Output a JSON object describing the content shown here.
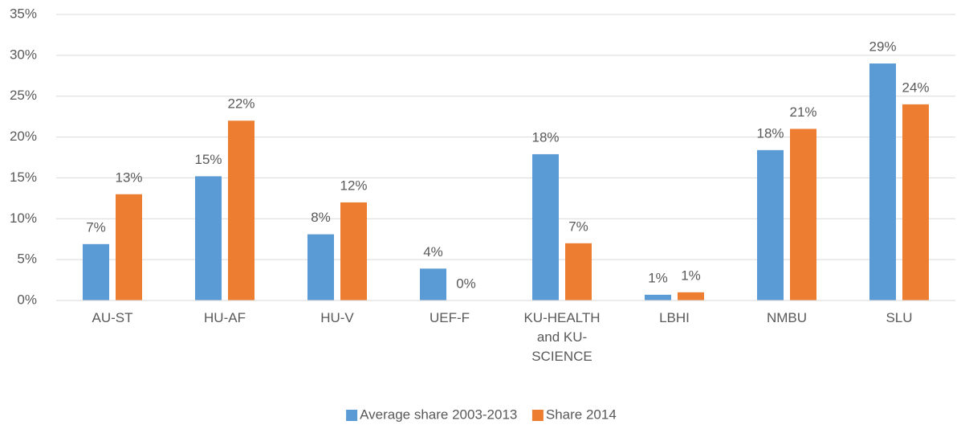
{
  "chart_data": {
    "type": "bar",
    "categories": [
      "AU-ST",
      "HU-AF",
      "HU-V",
      "UEF-F",
      "KU-HEALTH and KU-SCIENCE",
      "LBHI",
      "NMBU",
      "SLU"
    ],
    "series": [
      {
        "name": "Average share 2003-2013",
        "color": "#5b9bd5",
        "values": [
          6.9,
          15.2,
          8.1,
          3.9,
          17.9,
          0.7,
          18.4,
          29
        ],
        "value_labels": [
          "7%",
          "15%",
          "8%",
          "4%",
          "18%",
          "1%",
          "18%",
          "29%"
        ]
      },
      {
        "name": "Share 2014",
        "color": "#ed7d31",
        "values": [
          13,
          22,
          12,
          0,
          7,
          1,
          21,
          24
        ],
        "value_labels": [
          "13%",
          "22%",
          "12%",
          "0%",
          "7%",
          "1%",
          "21%",
          "24%"
        ]
      }
    ],
    "ylim": [
      0,
      35
    ],
    "yticks": [
      {
        "value": 0,
        "label": "0%"
      },
      {
        "value": 5,
        "label": "5%"
      },
      {
        "value": 10,
        "label": "10%"
      },
      {
        "value": 15,
        "label": "15%"
      },
      {
        "value": 20,
        "label": "20%"
      },
      {
        "value": 25,
        "label": "25%"
      },
      {
        "value": 30,
        "label": "30%"
      },
      {
        "value": 35,
        "label": "35%"
      }
    ],
    "grid": true,
    "legend": "bottom"
  }
}
